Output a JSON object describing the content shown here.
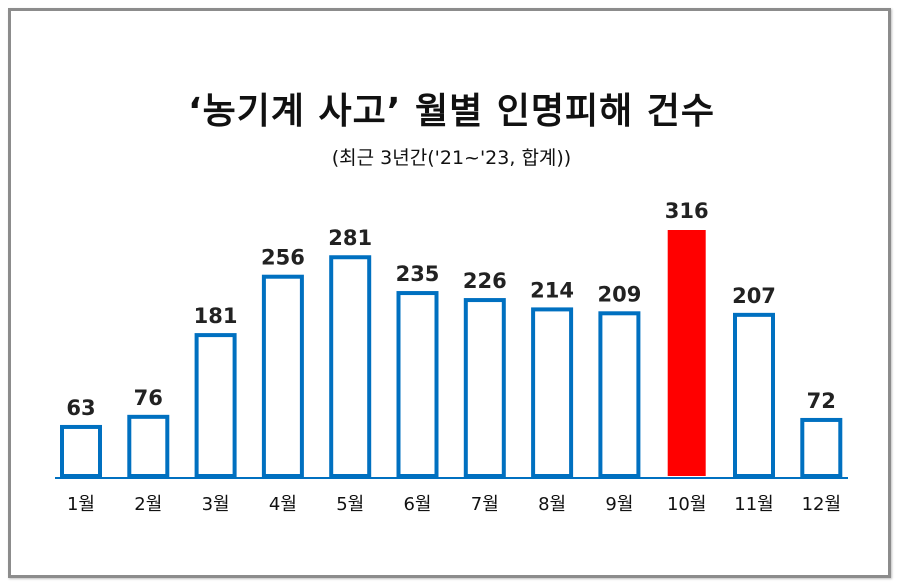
{
  "chart_data": {
    "type": "bar",
    "title": "‘농기계 사고’ 월별 인명피해 건수",
    "subtitle": "(최근 3년간('21~'23, 합계))",
    "categories": [
      "1월",
      "2월",
      "3월",
      "4월",
      "5월",
      "6월",
      "7월",
      "8월",
      "9월",
      "10월",
      "11월",
      "12월"
    ],
    "values": [
      63,
      76,
      181,
      256,
      281,
      235,
      226,
      214,
      209,
      316,
      207,
      72
    ],
    "highlight_index": 9,
    "colors": {
      "bar_outline": "#0070c0",
      "bar_fill": "#ffffff",
      "highlight_fill": "#ff0000"
    },
    "ylim": [
      0,
      316
    ],
    "grid": false,
    "xlabel": "",
    "ylabel": ""
  }
}
